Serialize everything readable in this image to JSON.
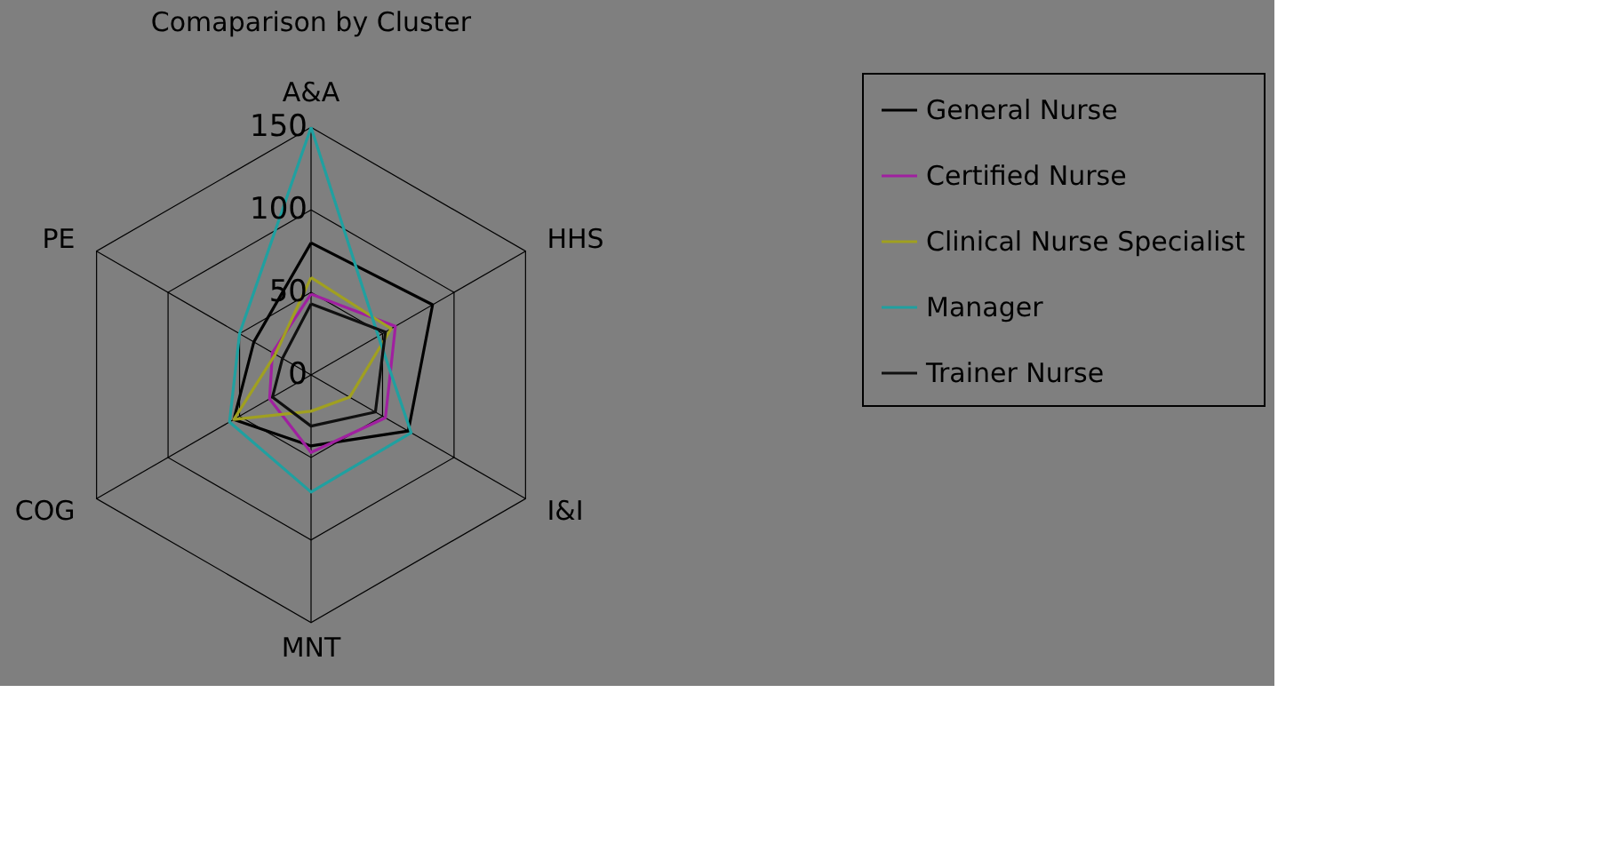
{
  "chart_data": {
    "type": "radar",
    "title": "Comaparison by Cluster",
    "categories": [
      "A&A",
      "HHS",
      "I&I",
      "MNT",
      "COG",
      "PE"
    ],
    "ylim": [
      0,
      150
    ],
    "yticks": [
      0,
      50,
      100,
      150
    ],
    "legend": "right",
    "series": [
      {
        "name": "General Nurse",
        "color": "#000000",
        "values": [
          80,
          85,
          68,
          43,
          54,
          40
        ]
      },
      {
        "name": "Certified Nurse",
        "color": "#a020a0",
        "values": [
          49,
          59,
          52,
          47,
          29,
          27
        ]
      },
      {
        "name": "Clinical Nurse Specialist",
        "color": "#a0a020",
        "values": [
          59,
          56,
          27,
          22,
          54,
          25
        ]
      },
      {
        "name": "Manager",
        "color": "#20a0a0",
        "values": [
          150,
          47,
          70,
          71,
          57,
          50
        ]
      },
      {
        "name": "Trainer Nurse",
        "color": "#101010",
        "values": [
          43,
          52,
          45,
          31,
          27,
          20
        ]
      }
    ]
  }
}
